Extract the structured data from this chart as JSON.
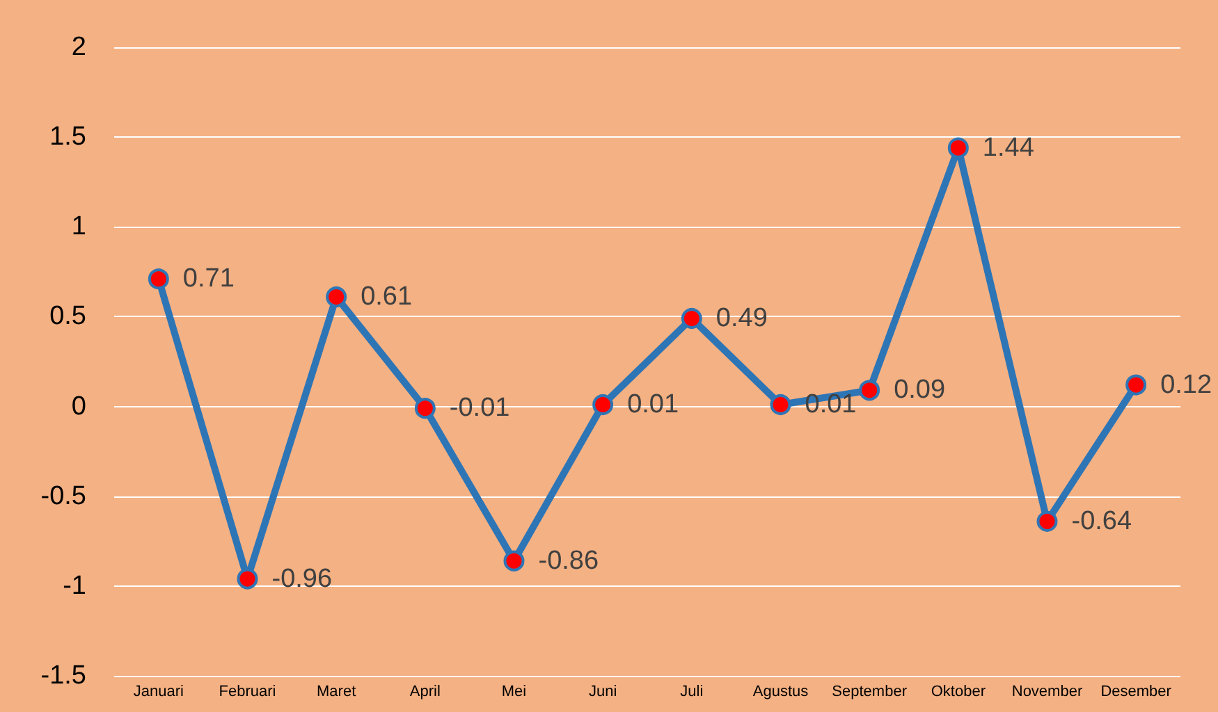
{
  "chart_data": {
    "type": "line",
    "categories": [
      "Januari",
      "Februari",
      "Maret",
      "April",
      "Mei",
      "Juni",
      "Juli",
      "Agustus",
      "September",
      "Oktober",
      "November",
      "Desember"
    ],
    "series": [
      {
        "color": "#2e75b6",
        "values": [
          0.71,
          -0.96,
          0.61,
          -0.01,
          -0.86,
          0.01,
          0.49,
          0.01,
          0.09,
          1.44,
          -0.64,
          0.12
        ]
      }
    ],
    "ylim": [
      -1.5,
      2
    ],
    "yticks": [
      -1.5,
      -1,
      -0.5,
      0,
      0.5,
      1,
      1.5,
      2
    ],
    "grid": "y",
    "data_labels": true,
    "marker": "circle",
    "line_style": "solid"
  }
}
